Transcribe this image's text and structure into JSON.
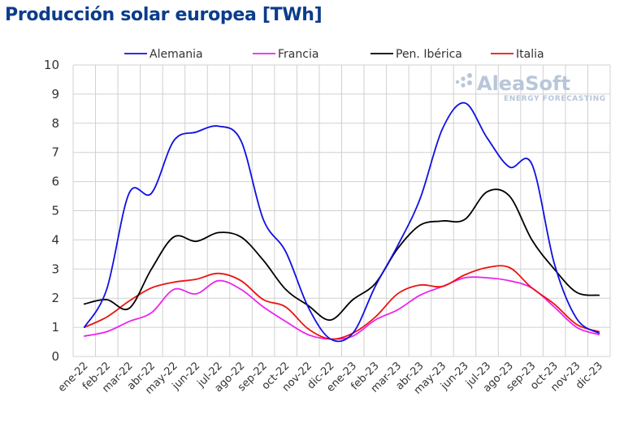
{
  "chart_data": {
    "type": "line",
    "title": "Producción solar europea [TWh]",
    "xlabel": "",
    "ylabel": "",
    "ylim": [
      0,
      10
    ],
    "yticks": [
      0,
      1,
      2,
      3,
      4,
      5,
      6,
      7,
      8,
      9,
      10
    ],
    "grid": true,
    "legend_position": "top",
    "categories": [
      "ene-22",
      "feb-22",
      "mar-22",
      "abr-22",
      "may-22",
      "jun-22",
      "jul-22",
      "ago-22",
      "sep-22",
      "oct-22",
      "nov-22",
      "dic-22",
      "ene-23",
      "feb-23",
      "mar-23",
      "abr-23",
      "may-23",
      "jun-23",
      "jul-23",
      "ago-23",
      "sep-23",
      "oct-23",
      "nov-23",
      "dic-23"
    ],
    "series": [
      {
        "name": "Alemania",
        "color": "#1010e0",
        "values": [
          1.0,
          2.3,
          5.6,
          5.6,
          7.4,
          7.7,
          7.9,
          7.4,
          4.7,
          3.6,
          1.7,
          0.6,
          0.8,
          2.4,
          3.8,
          5.4,
          7.8,
          8.7,
          7.5,
          6.5,
          6.6,
          3.2,
          1.3,
          0.8
        ]
      },
      {
        "name": "Francia",
        "color": "#ee22ee",
        "values": [
          0.7,
          0.85,
          1.2,
          1.5,
          2.3,
          2.15,
          2.6,
          2.3,
          1.7,
          1.2,
          0.75,
          0.6,
          0.7,
          1.25,
          1.6,
          2.1,
          2.4,
          2.7,
          2.7,
          2.6,
          2.35,
          1.7,
          1.0,
          0.75
        ]
      },
      {
        "name": "Pen. Ibérica",
        "color": "#000000",
        "values": [
          1.8,
          1.95,
          1.65,
          3.0,
          4.1,
          3.95,
          4.25,
          4.1,
          3.3,
          2.3,
          1.75,
          1.25,
          1.95,
          2.5,
          3.7,
          4.5,
          4.65,
          4.7,
          5.65,
          5.5,
          4.0,
          3.0,
          2.2,
          2.1
        ]
      },
      {
        "name": "Italia",
        "color": "#ee1111",
        "values": [
          1.0,
          1.35,
          1.9,
          2.35,
          2.55,
          2.65,
          2.85,
          2.6,
          1.95,
          1.7,
          0.95,
          0.6,
          0.8,
          1.35,
          2.15,
          2.45,
          2.4,
          2.8,
          3.05,
          3.05,
          2.35,
          1.8,
          1.1,
          0.85
        ]
      }
    ]
  },
  "watermark": {
    "brand": "AleaSoft",
    "tagline": "ENERGY FORECASTING"
  }
}
